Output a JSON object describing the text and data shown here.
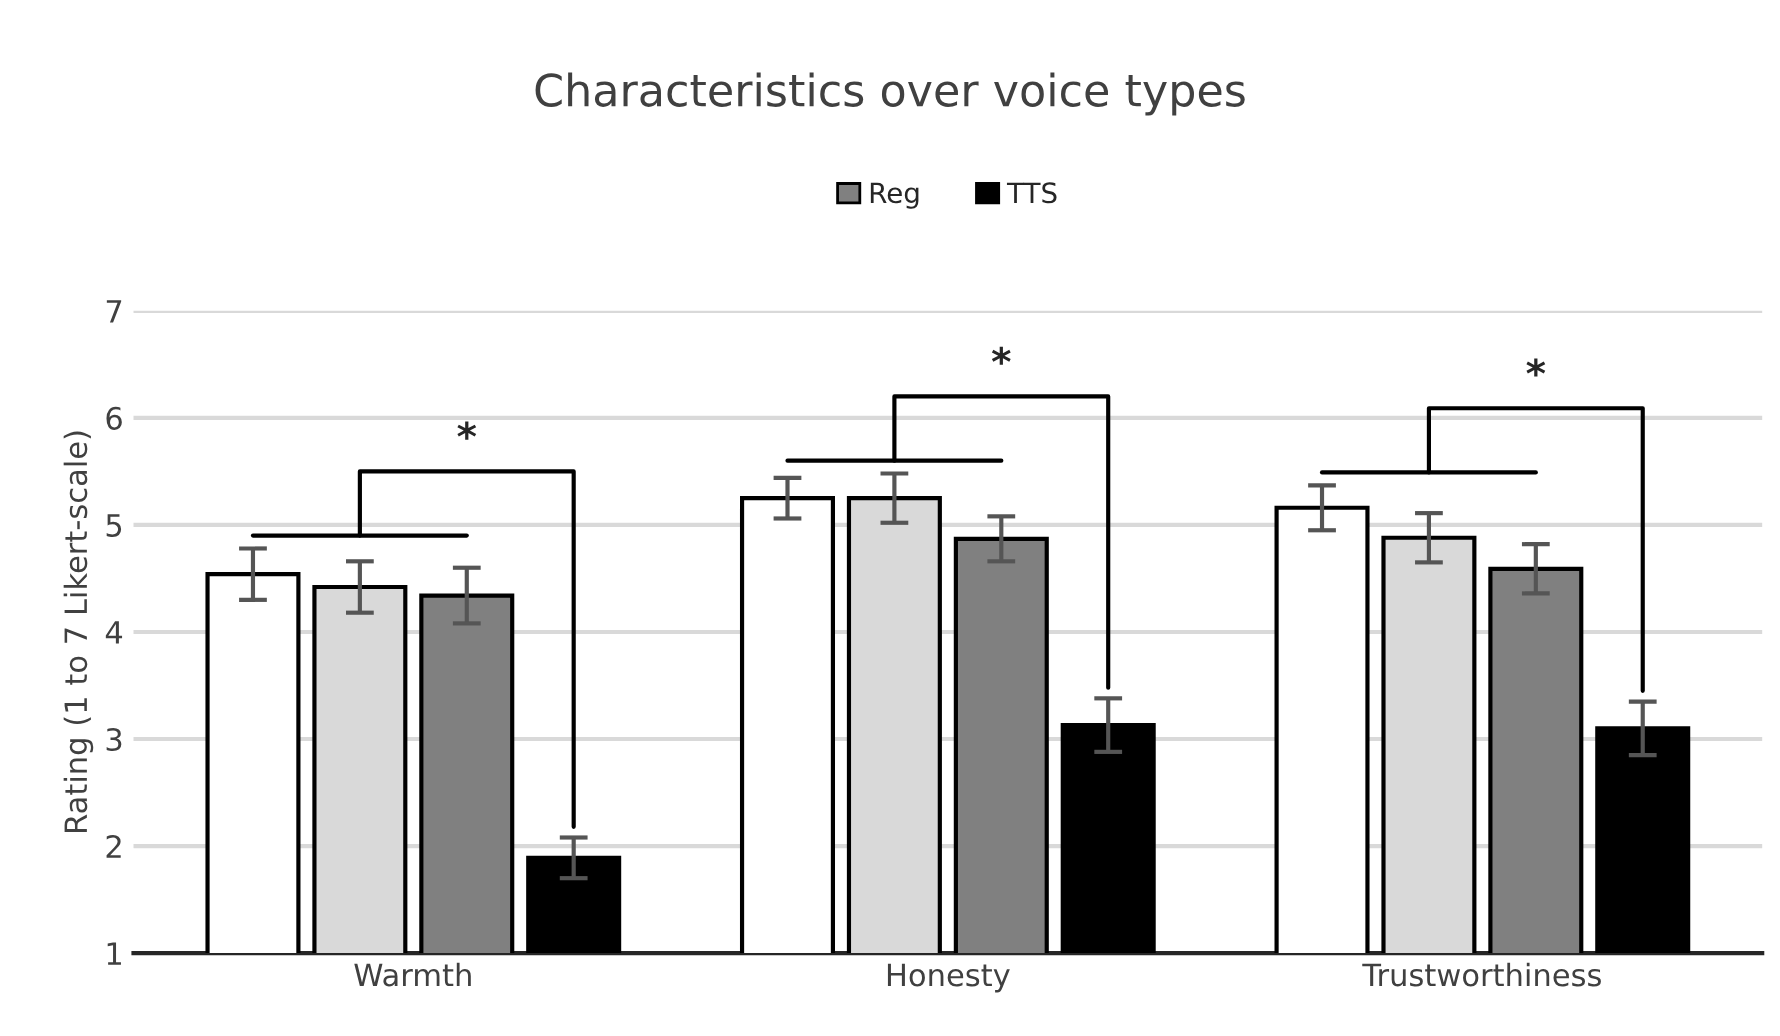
{
  "chart_data": {
    "type": "bar",
    "title": "Characteristics over voice types",
    "ylabel": "Rating (1 to 7 Likert-scale)",
    "categories": [
      "Warmth",
      "Honesty",
      "Trustworthiness"
    ],
    "series": [
      {
        "color": "#ffffff",
        "values": [
          4.54,
          5.25,
          5.16
        ],
        "errors": [
          0.24,
          0.19,
          0.21
        ]
      },
      {
        "color": "#d9d9d9",
        "values": [
          4.42,
          5.25,
          4.88
        ],
        "errors": [
          0.24,
          0.23,
          0.23
        ]
      },
      {
        "name": "Reg",
        "color": "#808080",
        "values": [
          4.34,
          4.87,
          4.59
        ],
        "errors": [
          0.26,
          0.21,
          0.23
        ]
      },
      {
        "name": "TTS",
        "color": "#000000",
        "values": [
          1.89,
          3.13,
          3.1
        ],
        "errors": [
          0.19,
          0.25,
          0.25
        ]
      }
    ],
    "ylim": [
      1,
      7
    ],
    "yticks": [
      1,
      2,
      3,
      4,
      5,
      6,
      7
    ],
    "grid": "y",
    "legend": "top",
    "annotations": [
      "*",
      "*",
      "*"
    ]
  }
}
